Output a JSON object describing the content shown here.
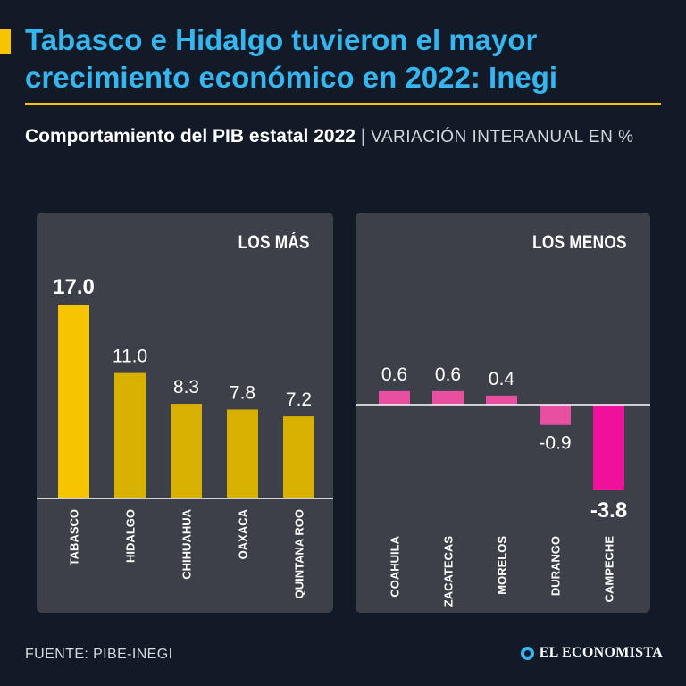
{
  "headline": "Tabasco e Hidalgo tuvieron el mayor crecimiento económico en 2022: Inegi",
  "subtitle": {
    "main": "Comportamiento del PIB estatal 2022",
    "separator": "|",
    "units": "VARIACIÓN INTERANUAL EN %"
  },
  "source": "FUENTE: PIBE-INEGI",
  "logo_text": "EL ECONOMISTA",
  "colors": {
    "background": "#111a26",
    "headline": "#35b6f0",
    "accent": "#f6c400",
    "panel": "#3d4048",
    "top_bar": "#f6c400",
    "top_bars": "#d8b000",
    "bottom_bars": "#e84fa0",
    "bottom_min": "#f0119a"
  },
  "chart_data": [
    {
      "type": "bar",
      "title": "LOS MÁS",
      "categories": [
        "TABASCO",
        "HIDALGO",
        "CHIHUAHUA",
        "OAXACA",
        "QUINTANA ROO"
      ],
      "values": [
        17.0,
        11.0,
        8.3,
        7.8,
        7.2
      ],
      "value_labels": [
        "17.0",
        "11.0",
        "8.3",
        "7.8",
        "7.2"
      ],
      "ylim": [
        0,
        17.0
      ]
    },
    {
      "type": "bar",
      "title": "LOS MENOS",
      "categories": [
        "COAHUILA",
        "ZACATECAS",
        "MORELOS",
        "DURANGO",
        "CAMPECHE"
      ],
      "values": [
        0.6,
        0.6,
        0.4,
        -0.9,
        -3.8
      ],
      "value_labels": [
        "0.6",
        "0.6",
        "0.4",
        "-0.9",
        "-3.8"
      ],
      "ylim": [
        -3.8,
        0.6
      ]
    }
  ]
}
